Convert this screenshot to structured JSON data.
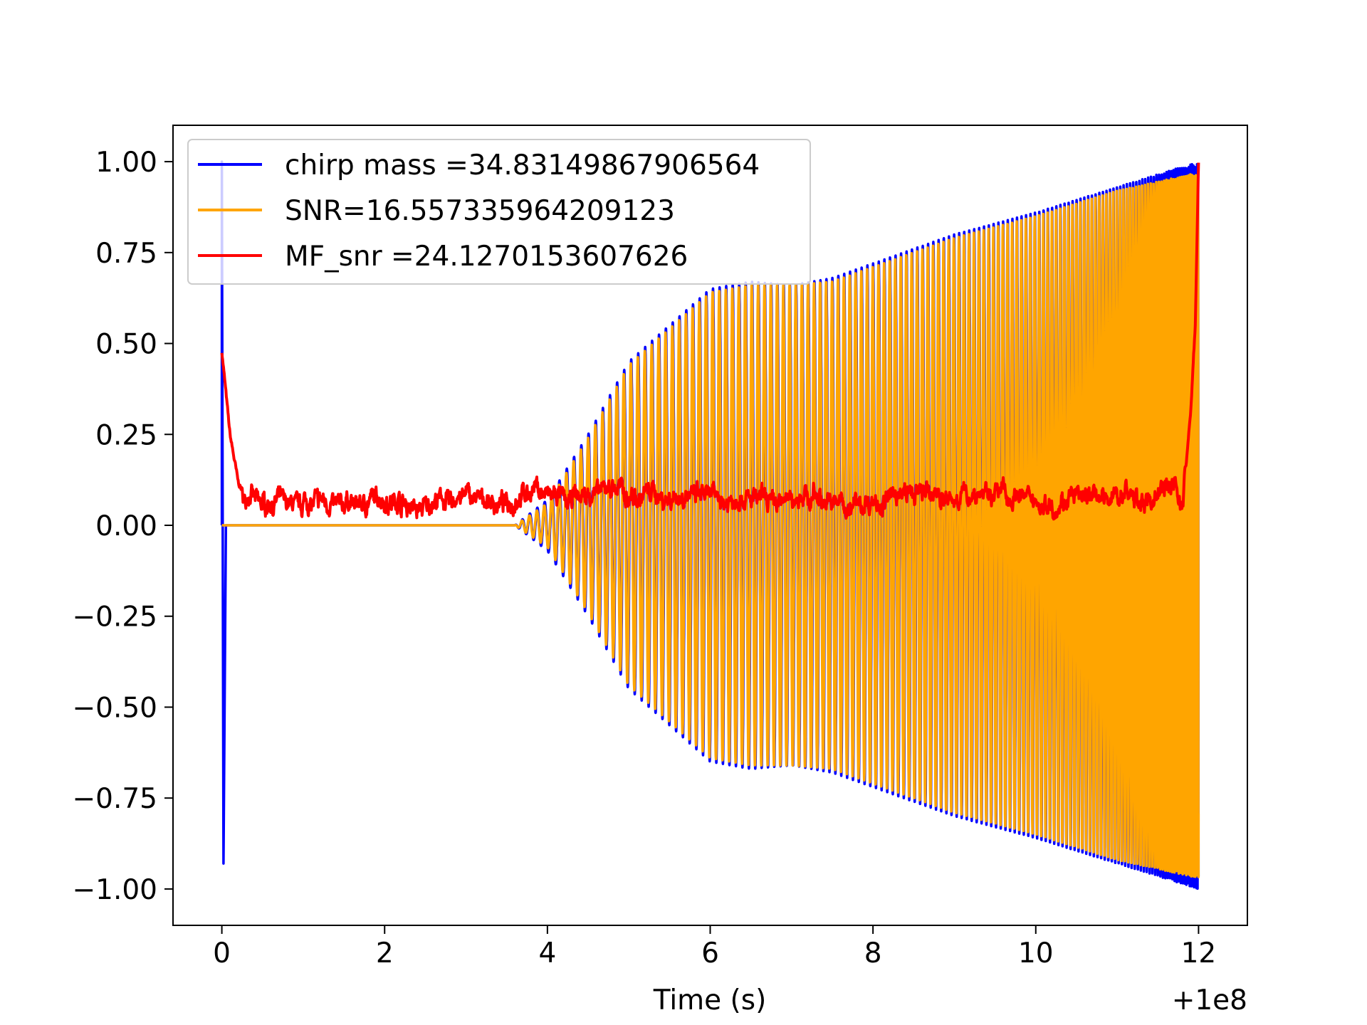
{
  "chart_data": {
    "type": "line",
    "title": "",
    "xlabel": "Time (s)",
    "ylabel": "",
    "x_offset_label": "+1e8",
    "xlim": [
      -0.6,
      12.6
    ],
    "ylim": [
      -1.1,
      1.1
    ],
    "x_ticks": [
      0,
      2,
      4,
      6,
      8,
      10,
      12
    ],
    "x_tick_labels": [
      "0",
      "2",
      "4",
      "6",
      "8",
      "10",
      "12"
    ],
    "y_ticks": [
      1.0,
      0.75,
      0.5,
      0.25,
      0.0,
      -0.25,
      -0.5,
      -0.75,
      -1.0
    ],
    "y_tick_labels": [
      "1.00",
      "0.75",
      "0.50",
      "0.25",
      "0.00",
      "−0.25",
      "−0.50",
      "−0.75",
      "−1.00"
    ],
    "grid": false,
    "legend_position": "upper-left",
    "series": [
      {
        "name": "chirp mass =34.83149867906564",
        "color": "#0000ff",
        "description": "normalized whitened strain: spike at t=0 (+1 to -0.93), quiet until ~3.6 s, then chirp oscillation growing to amplitude 0.7 at 6-7 s and reaching +/-1.0 at 12 s",
        "x": [
          0.0,
          0.02,
          0.05,
          3.6,
          4.0,
          4.5,
          5.0,
          5.5,
          6.0,
          6.5,
          7.0,
          7.5,
          8.0,
          9.0,
          10.0,
          11.0,
          12.0
        ],
        "envelope": [
          1.0,
          -0.93,
          0.0,
          0.0,
          0.07,
          0.25,
          0.45,
          0.55,
          0.65,
          0.67,
          0.66,
          0.68,
          0.72,
          0.8,
          0.86,
          0.93,
          1.0
        ]
      },
      {
        "name": "SNR=16.557335964209123",
        "color": "#ffa500",
        "description": "template waveform, zero until ~3.6 s, then oscillation closely tracking the blue series with similar envelope",
        "x": [
          0.0,
          3.6,
          4.0,
          4.5,
          5.0,
          5.5,
          6.0,
          6.5,
          7.0,
          7.5,
          8.0,
          9.0,
          10.0,
          11.0,
          12.0
        ],
        "envelope": [
          0.0,
          0.0,
          0.06,
          0.24,
          0.44,
          0.54,
          0.64,
          0.66,
          0.66,
          0.67,
          0.71,
          0.79,
          0.85,
          0.92,
          0.97
        ]
      },
      {
        "name": "MF_snr =24.1270153607626",
        "color": "#ff0000",
        "description": "matched-filter SNR trace: starts ~0.48, drops to ~0.05 noise floor with peaks to ~0.15, rises to 1.0 near 12 s",
        "x": [
          0.0,
          0.1,
          0.2,
          0.3,
          0.6,
          1.0,
          1.5,
          2.0,
          2.5,
          3.0,
          3.5,
          3.8,
          4.2,
          4.8,
          5.5,
          6.0,
          7.0,
          8.0,
          8.4,
          9.0,
          9.6,
          10.0,
          10.5,
          11.0,
          11.4,
          11.7,
          11.8,
          11.9,
          11.96,
          12.0
        ],
        "y": [
          0.48,
          0.25,
          0.12,
          0.07,
          0.06,
          0.07,
          0.06,
          0.07,
          0.05,
          0.08,
          0.05,
          0.1,
          0.06,
          0.1,
          0.08,
          0.07,
          0.08,
          0.06,
          0.09,
          0.07,
          0.1,
          0.05,
          0.07,
          0.08,
          0.06,
          0.13,
          0.05,
          0.3,
          0.55,
          1.0
        ]
      }
    ]
  }
}
